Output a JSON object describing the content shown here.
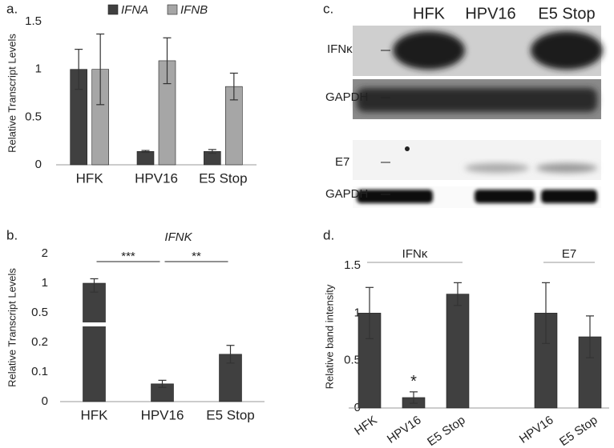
{
  "chart_data": [
    {
      "type": "bar",
      "panel": "a.",
      "ylabel": "Relative Transcript Levels",
      "categories": [
        "HFK",
        "HPV16",
        "E5 Stop"
      ],
      "series": [
        {
          "name": "IFNA",
          "color": "#404040",
          "values": [
            1,
            0.14,
            0.14
          ],
          "errors": [
            0.21,
            0.01,
            0.02
          ]
        },
        {
          "name": "IFNB",
          "color": "#a6a6a6",
          "values": [
            1,
            1.09,
            0.82
          ],
          "errors": [
            0.37,
            0.24,
            0.14
          ]
        }
      ],
      "ylim": [
        0,
        1.5
      ],
      "yticks": [
        0,
        0.5,
        1,
        1.5
      ],
      "legend": "top"
    },
    {
      "type": "bar",
      "panel": "b.",
      "title": "IFNK",
      "ylabel": "Relative Transcript Levels",
      "categories": [
        "HFK",
        "HPV16",
        "E5 Stop"
      ],
      "color": "#404040",
      "values": [
        1,
        0.06,
        0.16
      ],
      "errors": [
        0.15,
        0.012,
        0.03
      ],
      "ylim": [
        0,
        2
      ],
      "yticks": [
        0,
        0.1,
        0.2,
        0.5,
        1,
        2
      ],
      "axis_break": true,
      "annotations": [
        "***",
        "**"
      ]
    },
    {
      "type": "groupbar",
      "panel": "d.",
      "ylabel": "Relative band intensity",
      "color": "#404040",
      "groups": [
        {
          "label": "IFNκ",
          "categories": [
            "HFK",
            "HPV16",
            "E5 Stop"
          ],
          "values": [
            1,
            0.11,
            1.2
          ],
          "errors": [
            0.27,
            0.06,
            0.12
          ],
          "annotations": [
            null,
            "*",
            null
          ]
        },
        {
          "label": "E7",
          "categories": [
            "HPV16",
            "E5 Stop"
          ],
          "values": [
            1,
            0.75
          ],
          "errors": [
            0.32,
            0.22
          ],
          "annotations": [
            null,
            null
          ]
        }
      ],
      "ylim": [
        0,
        1.5
      ],
      "yticks": [
        0,
        0.5,
        1,
        1.5
      ]
    }
  ],
  "blot": {
    "panel": "c.",
    "columns": [
      "HFK",
      "HPV16",
      "E5 Stop"
    ],
    "rows": [
      "IFNκ",
      "GAPDH",
      "E7",
      "GAPDH"
    ]
  }
}
